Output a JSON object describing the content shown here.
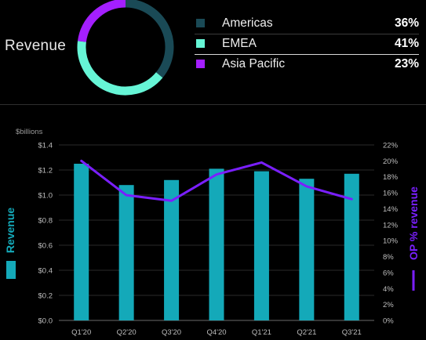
{
  "revenue_heading": "Revenue",
  "donut": {
    "segments": [
      {
        "name": "Americas",
        "value": 36,
        "color": "#1a4a56"
      },
      {
        "name": "EMEA",
        "value": 41,
        "color": "#66f5d6"
      },
      {
        "name": "Asia Pacific",
        "value": 23,
        "color": "#a41fff"
      }
    ]
  },
  "legend": [
    {
      "label": "Americas",
      "value": "36%",
      "color": "#1a4a56"
    },
    {
      "label": "EMEA",
      "value": "41%",
      "color": "#66f5d6"
    },
    {
      "label": "Asia Pacific",
      "value": "23%",
      "color": "#a41fff"
    }
  ],
  "chart_data": {
    "type": "bar",
    "unit_label": "$billions",
    "categories": [
      "Q1'20",
      "Q2'20",
      "Q3'20",
      "Q4'20",
      "Q1'21",
      "Q2'21",
      "Q3'21"
    ],
    "series": [
      {
        "name": "Revenue",
        "axis": "left",
        "kind": "bar",
        "color": "#14a9b9",
        "values": [
          1.25,
          1.08,
          1.12,
          1.21,
          1.19,
          1.13,
          1.17
        ]
      },
      {
        "name": "OP % revenue",
        "axis": "right",
        "kind": "line",
        "color": "#7a1fff",
        "values": [
          20,
          15.7,
          15,
          18.3,
          19.8,
          16.8,
          15.2
        ]
      }
    ],
    "ylabel": "Revenue",
    "y2label": "OP % revenue",
    "ylim": [
      0,
      1.4
    ],
    "y2lim": [
      0,
      22
    ],
    "y_ticks": [
      "$0.0",
      "$0.2",
      "$0.4",
      "$0.6",
      "$0.8",
      "$1.0",
      "$1.2",
      "$1.4"
    ],
    "y2_ticks": [
      "0%",
      "2%",
      "4%",
      "6%",
      "8%",
      "10%",
      "12%",
      "14%",
      "16%",
      "18%",
      "20%",
      "22%"
    ],
    "grid": true
  }
}
